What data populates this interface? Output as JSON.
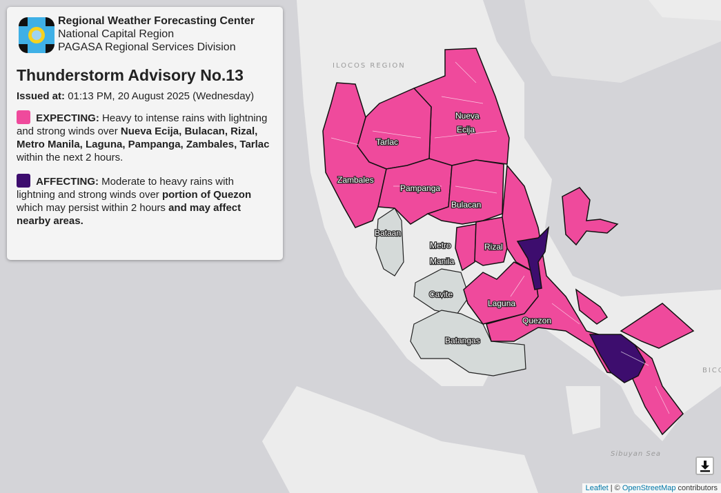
{
  "panel": {
    "org_name": "Regional Weather Forecasting Center",
    "region": "National Capital Region",
    "division": "PAGASA Regional Services Division",
    "title": "Thunderstorm Advisory No.13",
    "issued_label": "Issued at:",
    "issued_value": "01:13 PM, 20 August 2025 (Wednesday)",
    "expecting": {
      "color": "#ef4a9c",
      "label": "EXPECTING:",
      "text1": "Heavy to intense rains with lightning and strong winds over",
      "areas": "Nueva Ecija, Bulacan, Rizal, Metro Manila, Laguna, Pampanga, Zambales, Tarlac",
      "text2": "within the next 2 hours."
    },
    "affecting": {
      "color": "#3d0d6e",
      "label": "AFFECTING:",
      "text1": "Moderate to heavy rains with lightning and strong winds over",
      "areas": "portion of Quezon",
      "text2": "which may persist within 2 hours",
      "text3": "and may affect nearby areas."
    }
  },
  "map": {
    "region_labels": {
      "ilocos": "ILOCOS REGION",
      "bicol": "BICO",
      "sibuyan": "Sibuyan Sea"
    },
    "provinces": {
      "nueva_ecija": [
        "Nueva",
        "Ecija"
      ],
      "tarlac": "Tarlac",
      "zambales": "Zambales",
      "pampanga": "Pampanga",
      "bulacan": "Bulacan",
      "bataan": "Bataan",
      "metro_manila": [
        "Metro",
        "Manila"
      ],
      "rizal": "Rizal",
      "cavite": "Cavite",
      "laguna": "Laguna",
      "quezon": "Quezon",
      "batangas": "Batangas"
    },
    "colors": {
      "expecting": "#ef4a9c",
      "affecting": "#3d0d6e",
      "unaffected": "#d5dad9",
      "land": "#ececec",
      "water": "#d4d4d8"
    }
  },
  "controls": {
    "download_icon": "download-icon"
  },
  "attribution": {
    "leaflet": "Leaflet",
    "sep": " | © ",
    "osm": "OpenStreetMap",
    "contributors": " contributors"
  }
}
